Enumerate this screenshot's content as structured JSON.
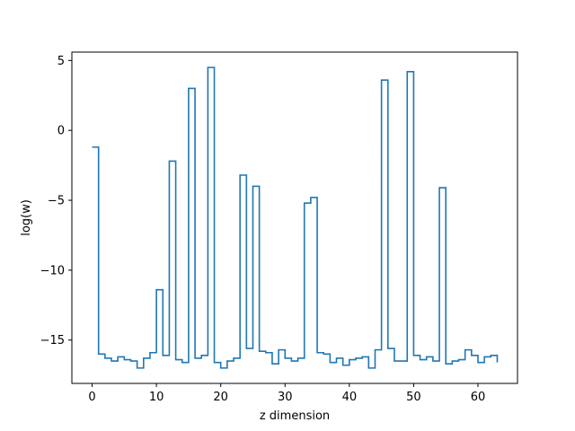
{
  "chart_data": {
    "type": "line",
    "drawstyle": "steps-post",
    "title": "",
    "xlabel": "z dimension",
    "ylabel": "log(w)",
    "xlim": [
      -3.15,
      66.15
    ],
    "ylim": [
      -18.1,
      5.6
    ],
    "xticks": [
      0,
      10,
      20,
      30,
      40,
      50,
      60
    ],
    "yticks": [
      5,
      0,
      -5,
      -10,
      -15
    ],
    "ytick_labels": [
      "5",
      "0",
      "−5",
      "−10",
      "−15"
    ],
    "grid": false,
    "legend": "none",
    "series_color": "#1f77b4",
    "x": [
      0,
      1,
      2,
      3,
      4,
      5,
      6,
      7,
      8,
      9,
      10,
      11,
      12,
      13,
      14,
      15,
      16,
      17,
      18,
      19,
      20,
      21,
      22,
      23,
      24,
      25,
      26,
      27,
      28,
      29,
      30,
      31,
      32,
      33,
      34,
      35,
      36,
      37,
      38,
      39,
      40,
      41,
      42,
      43,
      44,
      45,
      46,
      47,
      48,
      49,
      50,
      51,
      52,
      53,
      54,
      55,
      56,
      57,
      58,
      59,
      60,
      61,
      62,
      63
    ],
    "values": [
      -1.2,
      -16.0,
      -16.3,
      -16.5,
      -16.2,
      -16.4,
      -16.5,
      -17.0,
      -16.3,
      -15.9,
      -11.4,
      -16.1,
      -2.2,
      -16.4,
      -16.6,
      3.0,
      -16.3,
      -16.1,
      4.5,
      -16.6,
      -17.0,
      -16.5,
      -16.3,
      -3.2,
      -15.6,
      -4.0,
      -15.8,
      -15.9,
      -16.7,
      -15.7,
      -16.3,
      -16.5,
      -16.3,
      -5.2,
      -4.8,
      -15.9,
      -16.0,
      -16.6,
      -16.3,
      -16.8,
      -16.4,
      -16.3,
      -16.2,
      -17.0,
      -15.7,
      3.6,
      -15.6,
      -16.5,
      -16.5,
      4.2,
      -16.1,
      -16.4,
      -16.2,
      -16.5,
      -4.1,
      -16.7,
      -16.5,
      -16.4,
      -15.7,
      -16.1,
      -16.6,
      -16.2,
      -16.1,
      -16.6
    ]
  }
}
